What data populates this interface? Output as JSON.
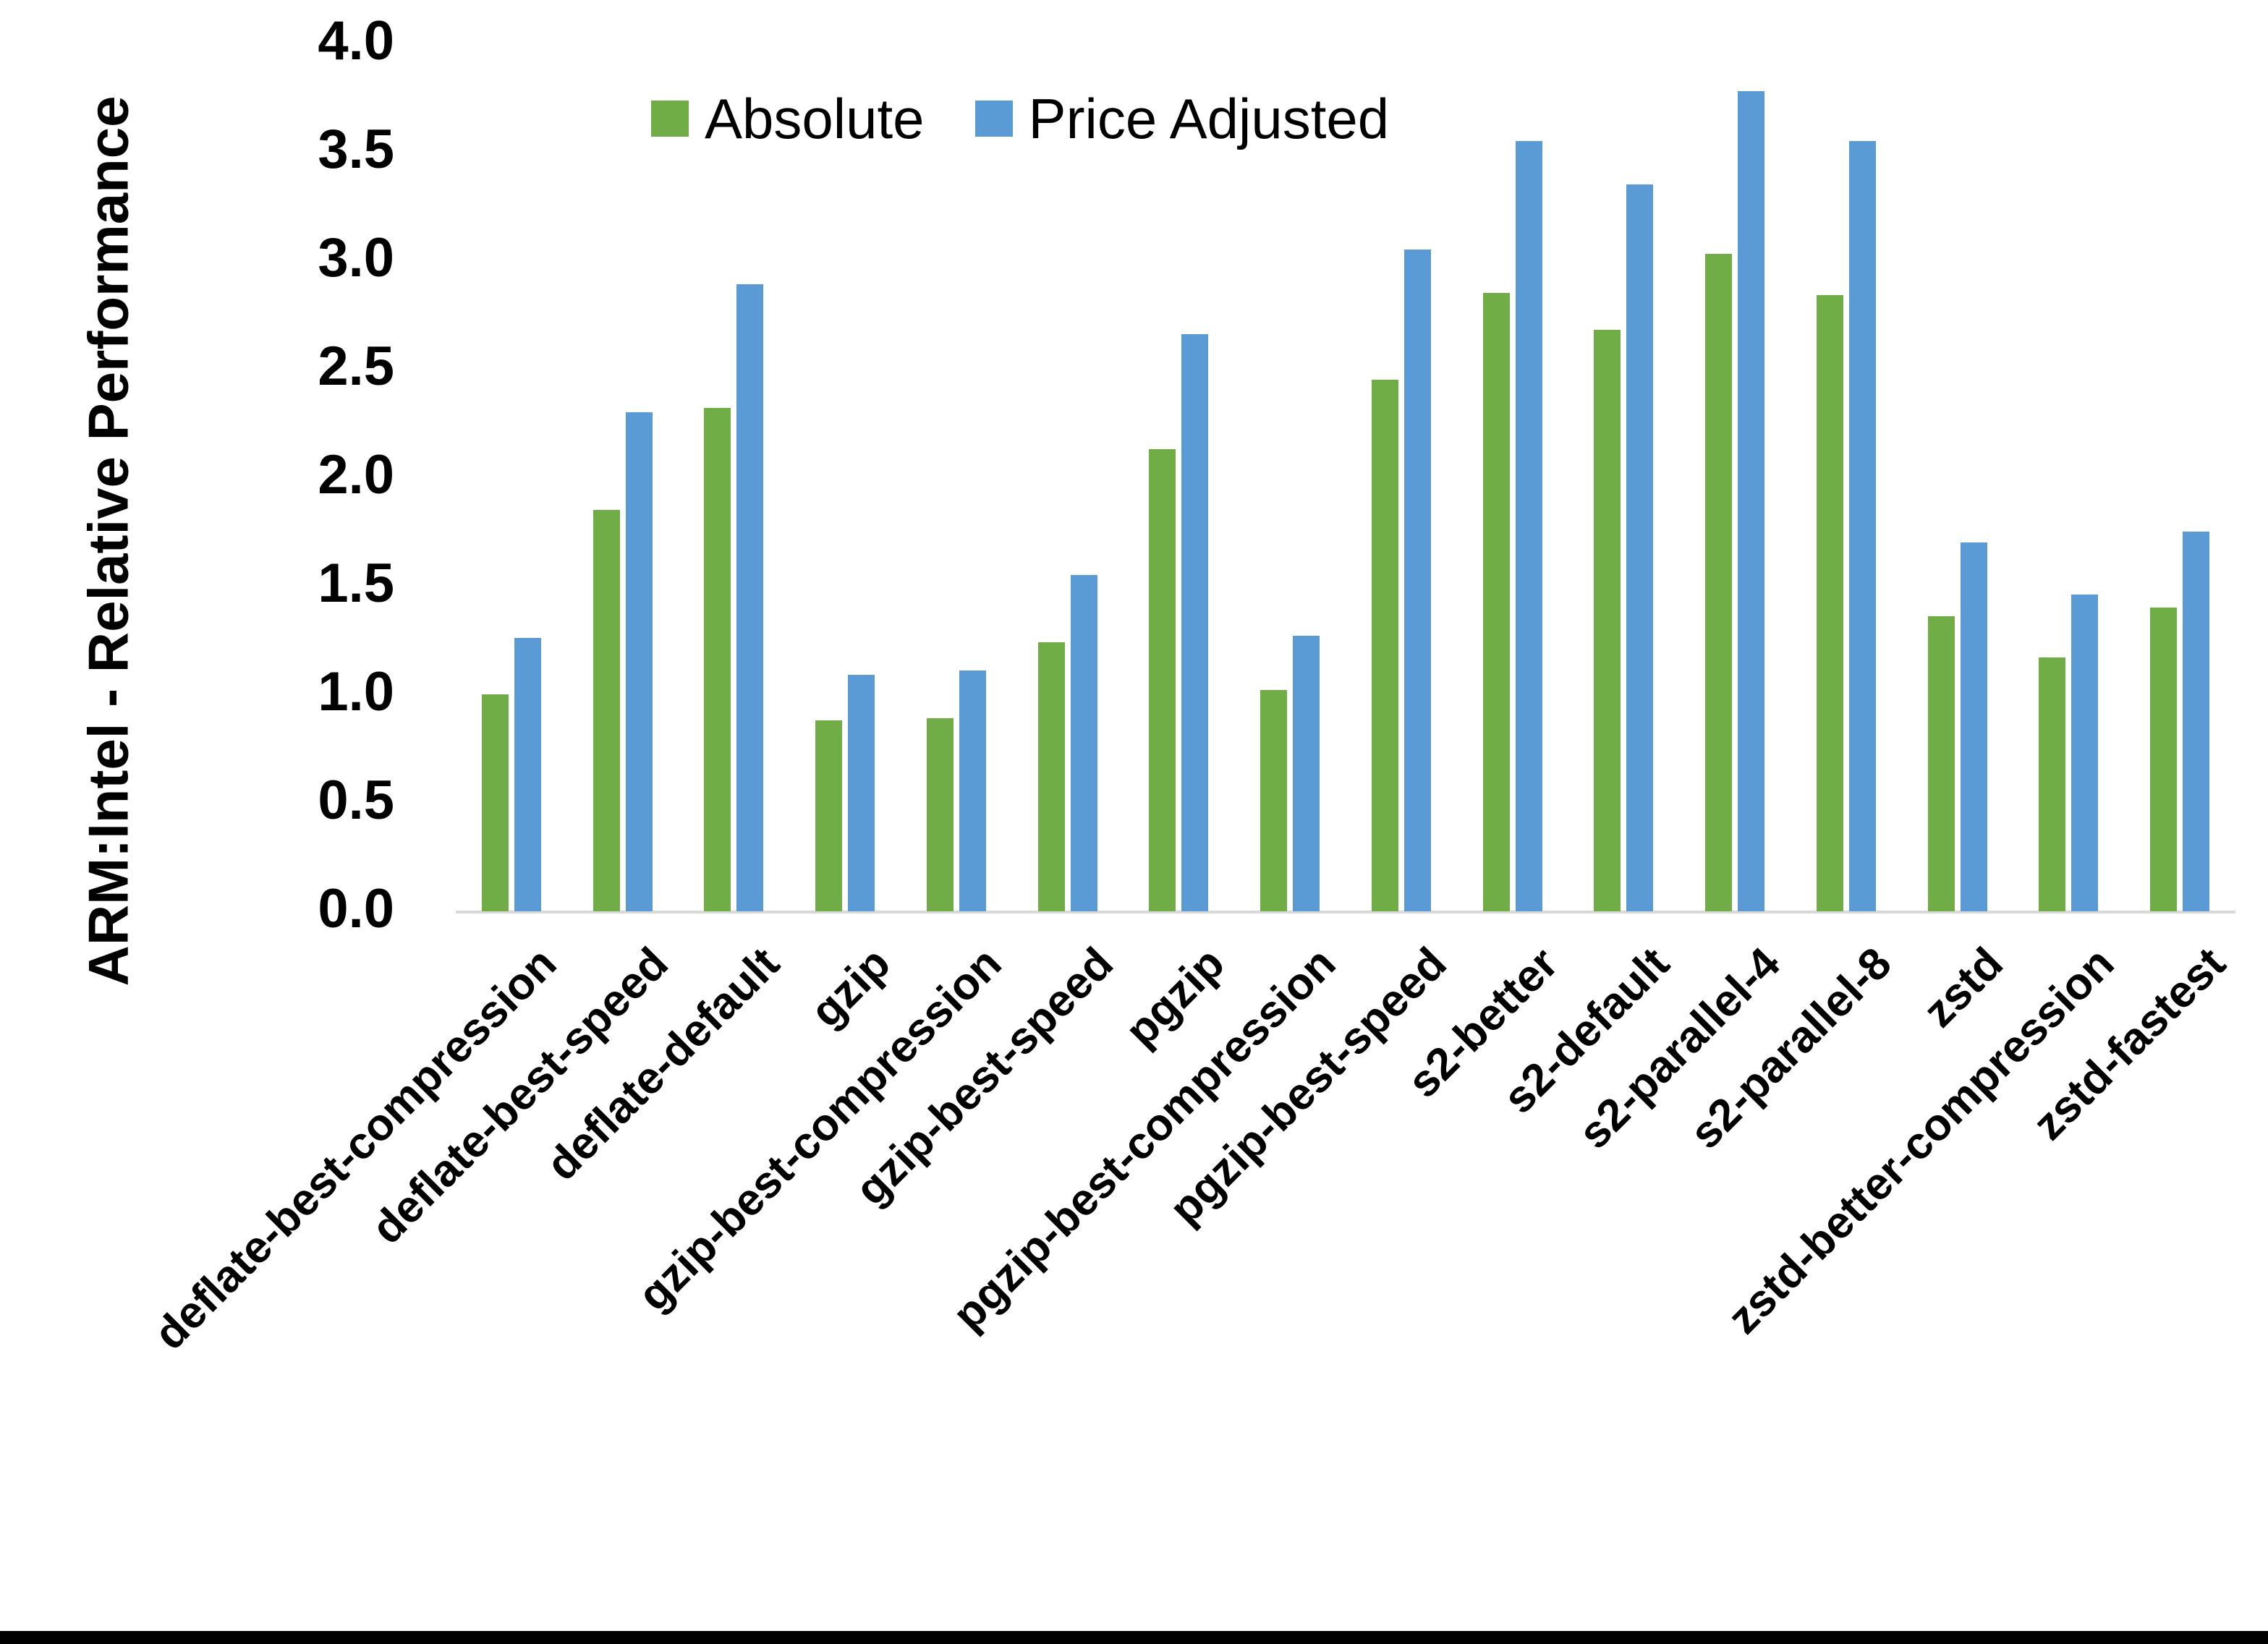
{
  "figure": {
    "background_color": "#ffffff",
    "bottom_border_color": "#000000",
    "axis_line_color": "#d9d9d9",
    "text_color": "#000000"
  },
  "chart_data": {
    "type": "bar",
    "title": "",
    "xlabel": "",
    "ylabel": "ARM:Intel - Relative Performance",
    "ylim": [
      0.0,
      4.0
    ],
    "ytick_step": 0.5,
    "ytick_labels": [
      "0.0",
      "0.5",
      "1.0",
      "1.5",
      "2.0",
      "2.5",
      "3.0",
      "3.5",
      "4.0"
    ],
    "grid": false,
    "legend_position": "top-center",
    "categories": [
      "deflate-best-compression",
      "deflate-best-speed",
      "deflate-default",
      "gzip",
      "gzip-best-compression",
      "gzip-best-speed",
      "pgzip",
      "pgzip-best-compression",
      "pgzip-best-speed",
      "s2-better",
      "s2-default",
      "s2-parallel-4",
      "s2-parallel-8",
      "zstd",
      "zstd-better-compression",
      "zstd-fastest"
    ],
    "series": [
      {
        "name": "Absolute",
        "color": "#70AD47",
        "values": [
          1.0,
          1.85,
          2.32,
          0.88,
          0.89,
          1.24,
          2.13,
          1.02,
          2.45,
          2.85,
          2.68,
          3.03,
          2.84,
          1.36,
          1.17,
          1.4
        ]
      },
      {
        "name": "Price Adjusted",
        "color": "#5B9BD5",
        "values": [
          1.26,
          2.3,
          2.89,
          1.09,
          1.11,
          1.55,
          2.66,
          1.27,
          3.05,
          3.55,
          3.35,
          3.78,
          3.55,
          1.7,
          1.46,
          1.75
        ]
      }
    ]
  }
}
